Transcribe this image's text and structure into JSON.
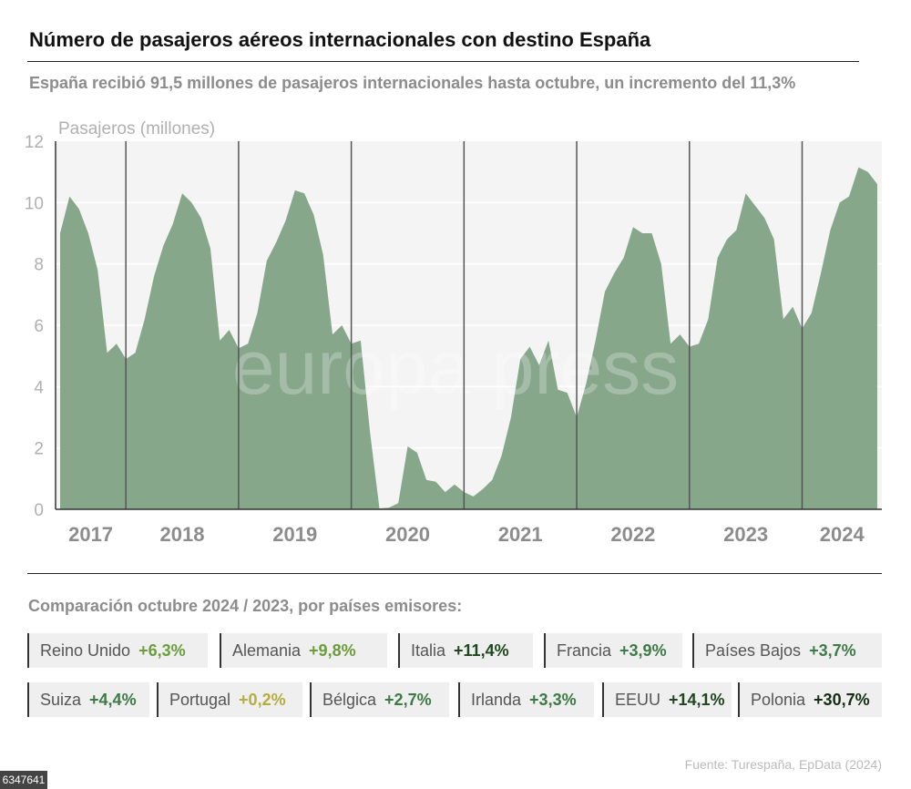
{
  "header": {
    "title": "Número de pasajeros aéreos internacionales con destino España",
    "subtitle": "España recibió 91,5 millones de pasajeros internacionales hasta octubre, un incremento del 11,3%"
  },
  "chart_data": {
    "type": "area",
    "ylabel": "Pasajeros (millones)",
    "ylim": [
      0,
      12
    ],
    "yticks": [
      "0",
      "2",
      "4",
      "6",
      "8",
      "10",
      "12"
    ],
    "grid": true,
    "start_month": "2017-07",
    "end_month": "2024-10",
    "year_labels": [
      "2017",
      "2018",
      "2019",
      "2020",
      "2021",
      "2022",
      "2023",
      "2024"
    ],
    "values": [
      9.0,
      10.2,
      9.8,
      9.0,
      7.8,
      5.1,
      5.4,
      4.9,
      5.1,
      6.2,
      7.6,
      8.6,
      9.3,
      10.3,
      10.0,
      9.5,
      8.5,
      5.5,
      5.85,
      5.25,
      5.4,
      6.4,
      8.1,
      8.7,
      9.4,
      10.4,
      10.3,
      9.6,
      8.3,
      5.7,
      6.0,
      5.4,
      5.5,
      2.5,
      0.03,
      0.05,
      0.2,
      2.05,
      1.85,
      0.96,
      0.9,
      0.56,
      0.81,
      0.56,
      0.42,
      0.66,
      0.96,
      1.75,
      3.0,
      4.9,
      5.3,
      4.7,
      5.5,
      3.9,
      3.8,
      3.0,
      4.1,
      5.5,
      7.1,
      7.7,
      8.2,
      9.2,
      9.0,
      9.0,
      8.0,
      5.4,
      5.7,
      5.3,
      5.4,
      6.2,
      8.2,
      8.8,
      9.1,
      10.3,
      9.9,
      9.5,
      8.8,
      6.2,
      6.6,
      5.9,
      6.4,
      7.7,
      9.1,
      10.0,
      10.2,
      11.15,
      11.0,
      10.6
    ],
    "fill_color": "#87a78b",
    "watermark": "europa press"
  },
  "comparison": {
    "heading": "Comparación octubre 2024 / 2023, por países emisores:",
    "items": [
      {
        "country": "Reino Unido",
        "value": "+6,3%",
        "color": "#6c9c3c"
      },
      {
        "country": "Alemania",
        "value": "+9,8%",
        "color": "#6c9c3c"
      },
      {
        "country": "Italia",
        "value": "+11,4%",
        "color": "#1f461f"
      },
      {
        "country": "Francia",
        "value": "+3,9%",
        "color": "#3e7a46"
      },
      {
        "country": "Países Bajos",
        "value": "+3,7%",
        "color": "#3e7a46"
      },
      {
        "country": "Suiza",
        "value": "+4,4%",
        "color": "#3e7a46"
      },
      {
        "country": "Portugal",
        "value": "+0,2%",
        "color": "#b3ae3e"
      },
      {
        "country": "Bélgica",
        "value": "+2,7%",
        "color": "#3e7a46"
      },
      {
        "country": "Irlanda",
        "value": "+3,3%",
        "color": "#3e7a46"
      },
      {
        "country": "EEUU",
        "value": "+14,1%",
        "color": "#1f461f"
      },
      {
        "country": "Polonia",
        "value": "+30,7%",
        "color": "#142e14"
      }
    ]
  },
  "source": "Fuente: Turespaña, EpData (2024)",
  "image_id": "6347641"
}
